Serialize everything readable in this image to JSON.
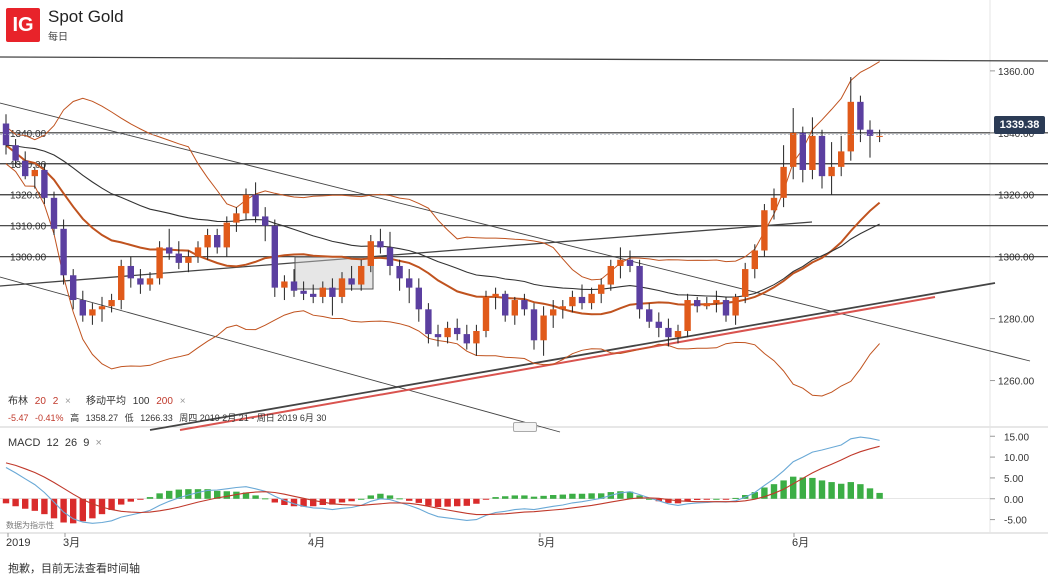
{
  "header": {
    "logo": "IG",
    "title": "Spot Gold",
    "interval": "每日"
  },
  "current_price": "1339.38",
  "legend": {
    "bollinger_label": "布林",
    "bollinger_period": "20",
    "bollinger_dev": "2",
    "ma_label": "移动平均",
    "ma_period_1": "100",
    "ma_period_2": "200",
    "close_label": "×",
    "change": "-5.47",
    "change_pct": "-0.41%",
    "high_label": "高",
    "high_value": "1358.27",
    "low_label": "低",
    "low_value": "1266.33",
    "range_text": "周四 2019 2月 21 - 周日 2019 6月 30"
  },
  "macd_legend": {
    "label": "MACD",
    "fast": "12",
    "slow": "26",
    "signal": "9",
    "close_label": "×"
  },
  "data_note": "数据为指示性",
  "footer_note": "抱歉，目前无法查看时间轴",
  "colors": {
    "up": "#e05a1a",
    "down": "#5b3fa0",
    "bollinger": "#c0531f",
    "ma100": "#c0531f",
    "ma200": "#333333",
    "macd_line": "#6aa9d6",
    "signal_line": "#c0392b",
    "hist_pos": "#3cae45",
    "hist_neg": "#d92b2b"
  },
  "chart_data": [
    {
      "type": "candlestick",
      "title": "Spot Gold",
      "ylim": [
        1245,
        1369
      ],
      "y_ticks": [
        1360,
        1340,
        1320,
        1300,
        1280,
        1260
      ],
      "y_tick_labels": [
        "1360.00",
        "1340.00",
        "1320.00",
        "1300.00",
        "1280.00",
        "1260.00"
      ],
      "left_level_labels": [
        "1340.00",
        "1330.00",
        "1320.00",
        "1310.00",
        "1300.00"
      ],
      "horizontal_levels": [
        1340,
        1330,
        1320,
        1310,
        1300
      ],
      "x_labels": [
        "2019",
        "3月",
        "4月",
        "5月",
        "6月"
      ],
      "candles": [
        [
          1343,
          1346,
          1333,
          1336
        ],
        [
          1336,
          1338,
          1329,
          1331
        ],
        [
          1331,
          1334,
          1325,
          1326
        ],
        [
          1326,
          1329,
          1322,
          1328
        ],
        [
          1328,
          1330,
          1317,
          1319
        ],
        [
          1319,
          1321,
          1307,
          1309
        ],
        [
          1309,
          1312,
          1291,
          1294
        ],
        [
          1294,
          1296,
          1283,
          1286
        ],
        [
          1286,
          1289,
          1279,
          1281
        ],
        [
          1281,
          1285,
          1278,
          1283
        ],
        [
          1283,
          1287,
          1279,
          1284
        ],
        [
          1284,
          1288,
          1282,
          1286
        ],
        [
          1286,
          1299,
          1283,
          1297
        ],
        [
          1297,
          1300,
          1290,
          1293
        ],
        [
          1293,
          1296,
          1288,
          1291
        ],
        [
          1291,
          1295,
          1289,
          1293
        ],
        [
          1293,
          1305,
          1291,
          1303
        ],
        [
          1303,
          1309,
          1299,
          1301
        ],
        [
          1301,
          1305,
          1296,
          1298
        ],
        [
          1298,
          1302,
          1295,
          1300
        ],
        [
          1300,
          1305,
          1298,
          1303
        ],
        [
          1303,
          1309,
          1299,
          1307
        ],
        [
          1307,
          1309,
          1301,
          1303
        ],
        [
          1303,
          1313,
          1300,
          1311
        ],
        [
          1311,
          1316,
          1308,
          1314
        ],
        [
          1314,
          1322,
          1312,
          1320
        ],
        [
          1320,
          1324,
          1311,
          1313
        ],
        [
          1313,
          1316,
          1305,
          1310
        ],
        [
          1310,
          1312,
          1287,
          1290
        ],
        [
          1290,
          1294,
          1286,
          1292
        ],
        [
          1292,
          1296,
          1287,
          1289
        ],
        [
          1289,
          1292,
          1286,
          1288
        ],
        [
          1288,
          1291,
          1285,
          1287
        ],
        [
          1287,
          1292,
          1285,
          1290
        ],
        [
          1290,
          1293,
          1281,
          1287
        ],
        [
          1287,
          1295,
          1285,
          1293
        ],
        [
          1293,
          1297,
          1289,
          1291
        ],
        [
          1291,
          1299,
          1289,
          1297
        ],
        [
          1297,
          1307,
          1295,
          1305
        ],
        [
          1305,
          1309,
          1301,
          1303
        ],
        [
          1303,
          1308,
          1294,
          1297
        ],
        [
          1297,
          1299,
          1289,
          1293
        ],
        [
          1293,
          1296,
          1285,
          1290
        ],
        [
          1290,
          1293,
          1279,
          1283
        ],
        [
          1283,
          1285,
          1272,
          1275
        ],
        [
          1275,
          1278,
          1271,
          1274
        ],
        [
          1274,
          1279,
          1272,
          1277
        ],
        [
          1277,
          1280,
          1273,
          1275
        ],
        [
          1275,
          1278,
          1270,
          1272
        ],
        [
          1272,
          1278,
          1268,
          1276
        ],
        [
          1276,
          1289,
          1274,
          1287
        ],
        [
          1287,
          1290,
          1283,
          1288
        ],
        [
          1288,
          1289,
          1279,
          1281
        ],
        [
          1281,
          1287,
          1278,
          1286
        ],
        [
          1286,
          1288,
          1281,
          1283
        ],
        [
          1283,
          1285,
          1270,
          1273
        ],
        [
          1273,
          1284,
          1268,
          1281
        ],
        [
          1281,
          1286,
          1277,
          1283
        ],
        [
          1283,
          1286,
          1280,
          1284
        ],
        [
          1284,
          1289,
          1282,
          1287
        ],
        [
          1287,
          1291,
          1283,
          1285
        ],
        [
          1285,
          1290,
          1283,
          1288
        ],
        [
          1288,
          1293,
          1285,
          1291
        ],
        [
          1291,
          1299,
          1289,
          1297
        ],
        [
          1297,
          1303,
          1293,
          1299
        ],
        [
          1299,
          1302,
          1295,
          1297
        ],
        [
          1297,
          1299,
          1280,
          1283
        ],
        [
          1283,
          1285,
          1277,
          1279
        ],
        [
          1279,
          1282,
          1274,
          1277
        ],
        [
          1277,
          1280,
          1271,
          1274
        ],
        [
          1274,
          1278,
          1272,
          1276
        ],
        [
          1276,
          1288,
          1274,
          1286
        ],
        [
          1286,
          1287,
          1282,
          1284
        ],
        [
          1284,
          1287,
          1283,
          1285
        ],
        [
          1285,
          1289,
          1282,
          1286
        ],
        [
          1286,
          1287,
          1279,
          1281
        ],
        [
          1281,
          1288,
          1278,
          1287
        ],
        [
          1287,
          1298,
          1285,
          1296
        ],
        [
          1296,
          1304,
          1293,
          1302
        ],
        [
          1302,
          1317,
          1300,
          1315
        ],
        [
          1315,
          1322,
          1312,
          1319
        ],
        [
          1319,
          1336,
          1316,
          1329
        ],
        [
          1329,
          1348,
          1325,
          1340
        ],
        [
          1340,
          1342,
          1324,
          1328
        ],
        [
          1328,
          1345,
          1325,
          1339
        ],
        [
          1339,
          1341,
          1322,
          1326
        ],
        [
          1326,
          1337,
          1320,
          1329
        ],
        [
          1329,
          1339,
          1326,
          1334
        ],
        [
          1334,
          1358,
          1331,
          1350
        ],
        [
          1350,
          1352,
          1337,
          1341
        ],
        [
          1341,
          1344,
          1332,
          1339
        ],
        [
          1339,
          1341,
          1337,
          1339
        ]
      ]
    },
    {
      "type": "macd",
      "title": "MACD",
      "ylim": [
        -7.5,
        16.5
      ],
      "y_ticks": [
        15,
        10,
        5,
        0,
        -5
      ],
      "y_tick_labels": [
        "15.00",
        "10.00",
        "5.00",
        "0.00",
        "-5.00"
      ],
      "series": [
        {
          "name": "MACD",
          "values": [
            7.5,
            6.2,
            4.8,
            3.4,
            1.5,
            -0.8,
            -3.2,
            -4.8,
            -5.6,
            -5.9,
            -5.7,
            -5.3,
            -4.4,
            -3.9,
            -3.4,
            -2.8,
            -1.6,
            -0.6,
            0.2,
            0.9,
            1.5,
            2.0,
            2.1,
            2.4,
            2.7,
            2.9,
            2.4,
            1.8,
            0.6,
            -0.4,
            -1.2,
            -1.8,
            -2.2,
            -2.3,
            -2.6,
            -2.3,
            -2.1,
            -1.6,
            -0.6,
            0.0,
            -0.2,
            -0.9,
            -1.6,
            -2.4,
            -3.5,
            -4.3,
            -4.6,
            -4.9,
            -5.2,
            -5.0,
            -4.0,
            -3.3,
            -3.0,
            -2.6,
            -2.4,
            -2.6,
            -2.2,
            -1.8,
            -1.5,
            -1.0,
            -0.7,
            -0.3,
            0.1,
            0.8,
            1.4,
            1.7,
            1.0,
            0.2,
            -0.5,
            -1.2,
            -1.6,
            -1.2,
            -1.0,
            -0.9,
            -0.7,
            -0.8,
            -0.5,
            0.4,
            1.5,
            3.2,
            4.8,
            6.7,
            8.9,
            10.0,
            11.2,
            11.7,
            12.3,
            12.9,
            14.4,
            14.8,
            14.5,
            14.0
          ]
        },
        {
          "name": "Signal",
          "values": [
            8.6,
            8.0,
            7.2,
            6.3,
            5.2,
            3.9,
            2.5,
            1.1,
            -0.2,
            -1.2,
            -2.0,
            -2.6,
            -3.0,
            -3.2,
            -3.3,
            -3.2,
            -2.9,
            -2.5,
            -2.0,
            -1.4,
            -0.8,
            -0.3,
            0.2,
            0.6,
            1.0,
            1.4,
            1.6,
            1.7,
            1.5,
            1.1,
            0.6,
            0.1,
            -0.4,
            -0.8,
            -1.2,
            -1.4,
            -1.5,
            -1.6,
            -1.4,
            -1.2,
            -1.0,
            -1.0,
            -1.1,
            -1.4,
            -1.8,
            -2.3,
            -2.7,
            -3.1,
            -3.5,
            -3.8,
            -3.8,
            -3.7,
            -3.6,
            -3.4,
            -3.2,
            -3.1,
            -2.9,
            -2.7,
            -2.5,
            -2.2,
            -1.9,
            -1.6,
            -1.2,
            -0.8,
            -0.4,
            0.0,
            0.2,
            0.2,
            0.1,
            -0.2,
            -0.5,
            -0.6,
            -0.7,
            -0.7,
            -0.7,
            -0.7,
            -0.7,
            -0.5,
            -0.1,
            0.5,
            1.3,
            2.3,
            3.6,
            4.9,
            6.2,
            7.3,
            8.3,
            9.3,
            10.4,
            11.3,
            12.0,
            12.6
          ]
        }
      ]
    }
  ]
}
